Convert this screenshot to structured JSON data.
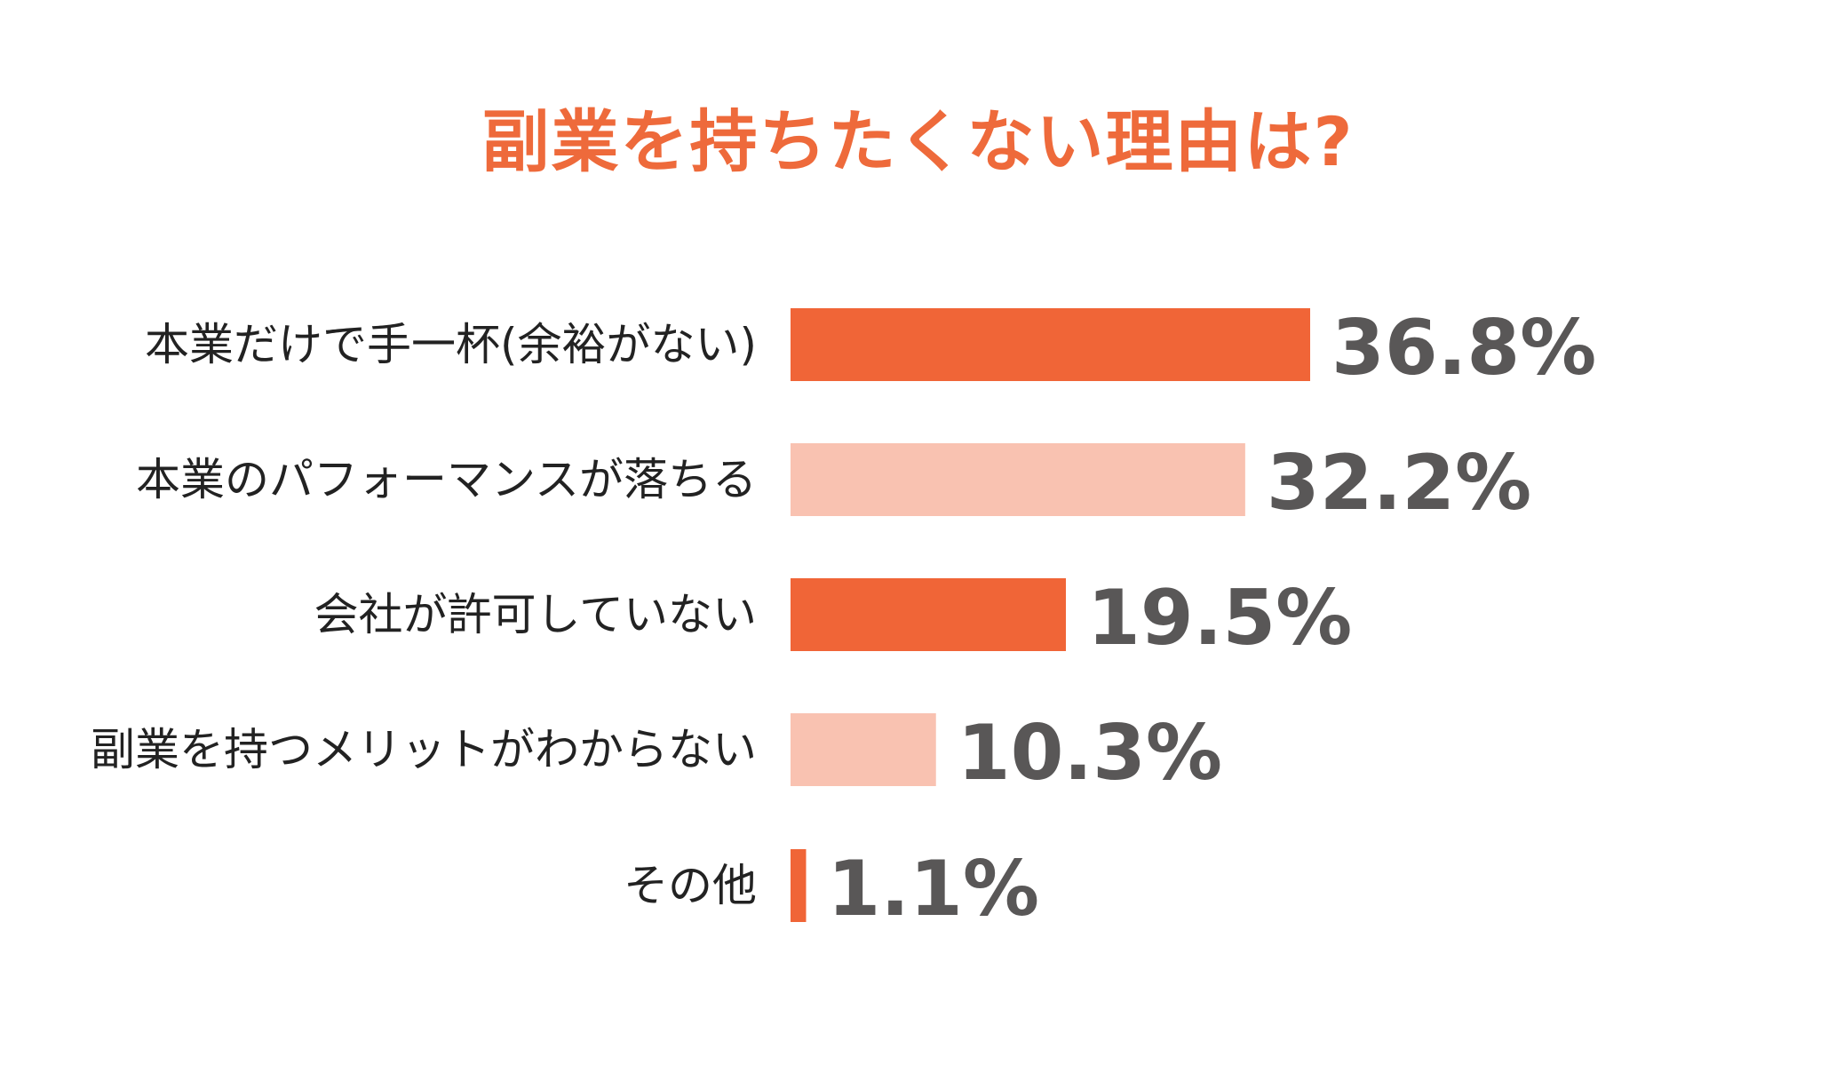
{
  "chart_data": {
    "type": "bar",
    "orientation": "horizontal",
    "title": "副業を持ちたくない理由は?",
    "categories": [
      "本業だけで手一杯(余裕がない)",
      "本業のパフォーマンスが落ちる",
      "会社が許可していない",
      "副業を持つメリットがわからない",
      "その他"
    ],
    "values": [
      36.8,
      32.2,
      19.5,
      10.3,
      1.1
    ],
    "value_labels": [
      "36.8%",
      "32.2%",
      "19.5%",
      "10.3%",
      "1.1%"
    ],
    "xlim": [
      0,
      36.8
    ],
    "grid": false,
    "legend": "none"
  },
  "colors": {
    "title": "#EE6A3B",
    "bars": [
      "#F06537",
      "#F9C2B1",
      "#F06537",
      "#F9C2B1",
      "#F06537"
    ],
    "values": "#595757",
    "labels": "#222222"
  }
}
